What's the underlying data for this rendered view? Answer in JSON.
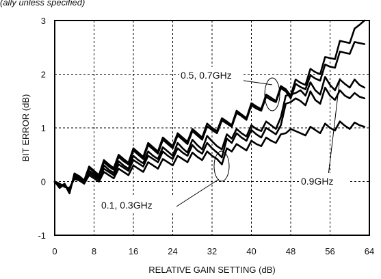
{
  "header_fragment": "(ally unless specified)",
  "chart_data": {
    "type": "line",
    "title": "",
    "xlabel": "RELATIVE GAIN SETTING (dB)",
    "ylabel": "BIT ERROR (dB)",
    "xlim": [
      0,
      64
    ],
    "ylim": [
      -1,
      3
    ],
    "xticks": [
      0,
      8,
      16,
      24,
      32,
      40,
      48,
      56,
      64
    ],
    "yticks": [
      -1,
      0,
      1,
      2,
      3
    ],
    "grid": true,
    "legend": "none",
    "annotations": [
      "0.5, 0.7GHz",
      "0.1, 0.3GHz",
      "0.9GHz"
    ],
    "series": [
      {
        "x": [
          0,
          1,
          2,
          3,
          4,
          5,
          6,
          7,
          8,
          9,
          10,
          11,
          12,
          13,
          14,
          15,
          16,
          17,
          18,
          19,
          20,
          21,
          22,
          23,
          24,
          25,
          26,
          27,
          28,
          29,
          30,
          31,
          32,
          33,
          34,
          35,
          36,
          37,
          38,
          39,
          40,
          41,
          42,
          43,
          44,
          45,
          46,
          47,
          48,
          49,
          50,
          51,
          52,
          53,
          54,
          55,
          56,
          57,
          58,
          59,
          60,
          61,
          62,
          63
        ],
        "y": [
          0,
          -0.12,
          -0.05,
          -0.22,
          0.15,
          0.1,
          0.02,
          0.28,
          0.2,
          0.12,
          0.4,
          0.32,
          0.25,
          0.5,
          0.42,
          0.35,
          0.62,
          0.54,
          0.46,
          0.72,
          0.64,
          0.56,
          0.82,
          0.74,
          0.66,
          0.9,
          0.82,
          0.74,
          0.98,
          0.9,
          0.82,
          1.08,
          1.0,
          0.94,
          1.18,
          1.12,
          1.05,
          1.32,
          1.25,
          1.18,
          1.46,
          1.4,
          1.35,
          1.62,
          1.56,
          1.5,
          1.78,
          1.72,
          1.6,
          1.9,
          1.84,
          1.8,
          2.1,
          2.04,
          2.0,
          2.32,
          2.3,
          2.28,
          2.62,
          2.6,
          2.58,
          2.85,
          2.92,
          3.0
        ]
      },
      {
        "x": [
          0,
          1,
          2,
          3,
          4,
          5,
          6,
          7,
          8,
          9,
          10,
          11,
          12,
          13,
          14,
          15,
          16,
          17,
          18,
          19,
          20,
          21,
          22,
          23,
          24,
          25,
          26,
          27,
          28,
          29,
          30,
          31,
          32,
          33,
          34,
          35,
          36,
          37,
          38,
          39,
          40,
          41,
          42,
          43,
          44,
          45,
          46,
          47,
          48,
          49,
          50,
          51,
          52,
          53,
          54,
          55,
          56,
          57,
          58,
          59,
          60,
          61,
          62,
          63
        ],
        "y": [
          0,
          -0.1,
          -0.04,
          -0.2,
          0.12,
          0.08,
          0.0,
          0.25,
          0.18,
          0.1,
          0.36,
          0.28,
          0.22,
          0.46,
          0.38,
          0.32,
          0.58,
          0.5,
          0.42,
          0.68,
          0.6,
          0.52,
          0.78,
          0.7,
          0.62,
          0.86,
          0.78,
          0.7,
          0.94,
          0.86,
          0.78,
          1.03,
          0.96,
          0.9,
          1.14,
          1.08,
          1.02,
          1.28,
          1.22,
          1.15,
          1.42,
          1.36,
          1.32,
          1.58,
          1.52,
          1.48,
          1.74,
          1.68,
          1.55,
          1.82,
          1.76,
          1.72,
          1.98,
          1.92,
          1.88,
          2.18,
          2.14,
          2.12,
          2.42,
          2.4,
          2.38,
          2.6,
          2.58,
          2.56
        ]
      },
      {
        "x": [
          0,
          1,
          2,
          3,
          4,
          5,
          6,
          7,
          8,
          9,
          10,
          11,
          12,
          13,
          14,
          15,
          16,
          17,
          18,
          19,
          20,
          21,
          22,
          23,
          24,
          25,
          26,
          27,
          28,
          29,
          30,
          31,
          32,
          33,
          34,
          35,
          36,
          37,
          38,
          39,
          40,
          41,
          42,
          43,
          44,
          45,
          46,
          47,
          48,
          49,
          50,
          51,
          52,
          53,
          54,
          55,
          56,
          57,
          58,
          59,
          60,
          61,
          62,
          63
        ],
        "y": [
          0,
          -0.08,
          -0.06,
          -0.18,
          0.1,
          0.06,
          0.0,
          0.2,
          0.14,
          0.06,
          0.3,
          0.22,
          0.16,
          0.38,
          0.3,
          0.24,
          0.48,
          0.4,
          0.34,
          0.56,
          0.48,
          0.42,
          0.64,
          0.56,
          0.48,
          0.72,
          0.62,
          0.54,
          0.78,
          0.68,
          0.6,
          0.85,
          0.75,
          0.66,
          0.6,
          0.88,
          0.8,
          0.98,
          0.9,
          0.84,
          1.05,
          0.98,
          0.94,
          1.12,
          1.05,
          0.98,
          1.2,
          1.6,
          1.62,
          1.65,
          1.7,
          1.6,
          1.85,
          1.7,
          1.62,
          1.95,
          1.8,
          1.7,
          1.9,
          1.82,
          1.75,
          1.9,
          1.8,
          1.75
        ]
      },
      {
        "x": [
          0,
          1,
          2,
          3,
          4,
          5,
          6,
          7,
          8,
          9,
          10,
          11,
          12,
          13,
          14,
          15,
          16,
          17,
          18,
          19,
          20,
          21,
          22,
          23,
          24,
          25,
          26,
          27,
          28,
          29,
          30,
          31,
          32,
          33,
          34,
          35,
          36,
          37,
          38,
          39,
          40,
          41,
          42,
          43,
          44,
          45,
          46,
          47,
          48,
          49,
          50,
          51,
          52,
          53,
          54,
          55,
          56,
          57,
          58,
          59,
          60,
          61,
          62,
          63
        ],
        "y": [
          0,
          -0.06,
          -0.08,
          -0.15,
          0.08,
          0.04,
          -0.02,
          0.16,
          0.1,
          0.04,
          0.24,
          0.18,
          0.12,
          0.32,
          0.26,
          0.2,
          0.4,
          0.34,
          0.28,
          0.48,
          0.42,
          0.36,
          0.56,
          0.48,
          0.42,
          0.62,
          0.54,
          0.48,
          0.68,
          0.58,
          0.52,
          0.72,
          0.62,
          0.54,
          0.45,
          0.8,
          0.72,
          0.9,
          0.82,
          0.76,
          0.96,
          0.88,
          0.82,
          1.0,
          0.94,
          0.88,
          1.05,
          1.45,
          1.48,
          1.55,
          1.5,
          1.42,
          1.68,
          1.52,
          1.45,
          1.75,
          1.6,
          1.52,
          1.7,
          1.6,
          1.55,
          1.65,
          1.58,
          1.55
        ]
      },
      {
        "x": [
          0,
          1,
          2,
          3,
          4,
          5,
          6,
          7,
          8,
          9,
          10,
          11,
          12,
          13,
          14,
          15,
          16,
          17,
          18,
          19,
          20,
          21,
          22,
          23,
          24,
          25,
          26,
          27,
          28,
          29,
          30,
          31,
          32,
          33,
          34,
          35,
          36,
          37,
          38,
          39,
          40,
          41,
          42,
          43,
          44,
          45,
          46,
          47,
          48,
          49,
          50,
          51,
          52,
          53,
          54,
          55,
          56,
          57,
          58,
          59,
          60,
          61,
          62,
          63
        ],
        "y": [
          0,
          -0.04,
          -0.1,
          -0.12,
          0.05,
          0.02,
          -0.04,
          0.12,
          0.06,
          0.0,
          0.18,
          0.12,
          0.06,
          0.24,
          0.18,
          0.12,
          0.3,
          0.24,
          0.18,
          0.36,
          0.3,
          0.24,
          0.42,
          0.36,
          0.3,
          0.48,
          0.42,
          0.36,
          0.54,
          0.46,
          0.4,
          0.56,
          0.48,
          0.42,
          0.32,
          0.62,
          0.56,
          0.7,
          0.64,
          0.58,
          0.76,
          0.7,
          0.66,
          0.82,
          0.76,
          0.72,
          0.88,
          0.9,
          0.98,
          0.94,
          0.9,
          0.86,
          1.02,
          0.96,
          0.9,
          1.08,
          1.0,
          0.95,
          1.12,
          1.04,
          0.98,
          1.1,
          1.05,
          1.02
        ]
      }
    ]
  }
}
